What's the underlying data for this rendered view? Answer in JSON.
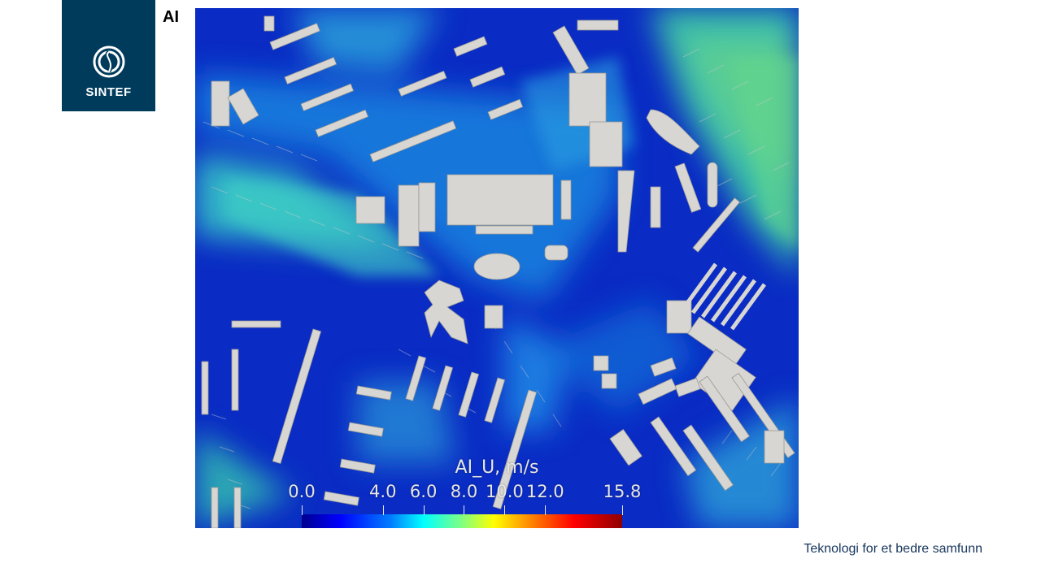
{
  "logo": {
    "text": "SINTEF",
    "icon": "sintef-logo-icon",
    "background": "#003b5c"
  },
  "slide": {
    "label": "AI"
  },
  "visualization": {
    "legend_title": "AI_U, m/s",
    "ticks": [
      "0.0",
      "4.0",
      "6.0",
      "8.0",
      "10.0",
      "12.0",
      "15.8"
    ],
    "tick_values": [
      0.0,
      4.0,
      6.0,
      8.0,
      10.0,
      12.0,
      15.8
    ],
    "range": [
      0.0,
      15.8
    ],
    "colormap": [
      "#00008f",
      "#0000ff",
      "#0080ff",
      "#00ffff",
      "#80ff80",
      "#ffff00",
      "#ff8000",
      "#ff0000",
      "#8f0000"
    ]
  },
  "footer": {
    "tagline": "Teknologi for et bedre samfunn"
  }
}
